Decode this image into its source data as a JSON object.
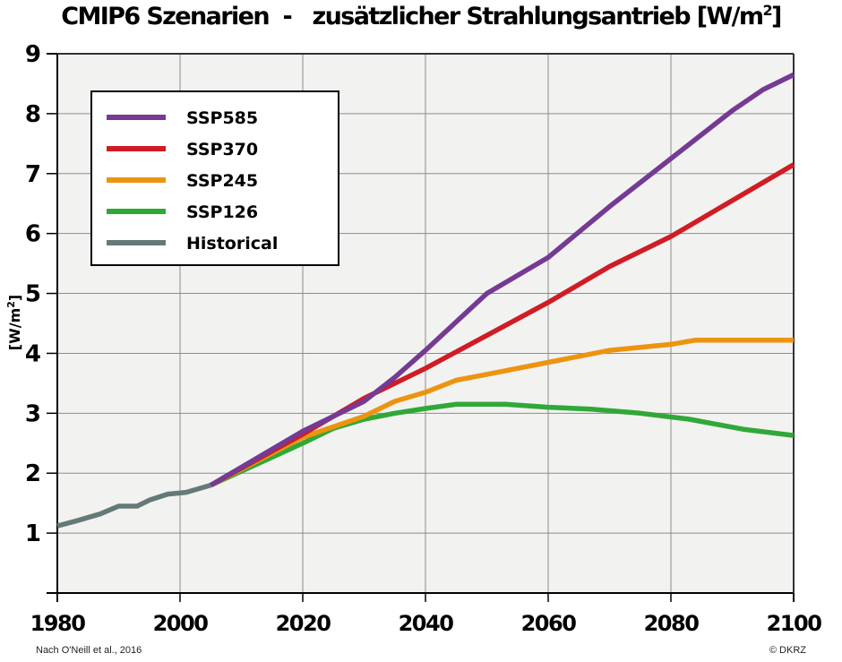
{
  "chart_data": {
    "type": "line",
    "title": "CMIP6 Szenarien  -   zusätzlicher Strahlungsantrieb [W/m",
    "title_sup": "2",
    "title_end": "]",
    "xlabel": "",
    "ylabel": "[W/m",
    "ylabel_sup": "2",
    "ylabel_end": "]",
    "xlim": [
      1980,
      2100
    ],
    "ylim": [
      0,
      9
    ],
    "xticks": [
      1980,
      2000,
      2020,
      2040,
      2060,
      2080,
      2100
    ],
    "xtick_labels": [
      "1980",
      "2000",
      "2020",
      "2040",
      "2060",
      "2080",
      "2100"
    ],
    "yticks": [
      1,
      2,
      3,
      4,
      5,
      6,
      7,
      8,
      9
    ],
    "ytick_labels": [
      "1",
      "2",
      "3",
      "4",
      "5",
      "6",
      "7",
      "8",
      "9"
    ],
    "grid": true,
    "legend_position": "top-left",
    "series": [
      {
        "name": "SSP585",
        "color": "#753a93",
        "x": [
          2005,
          2020,
          2030,
          2035,
          2040,
          2050,
          2060,
          2070,
          2080,
          2090,
          2095,
          2100
        ],
        "y": [
          1.8,
          2.7,
          3.2,
          3.6,
          4.05,
          5.0,
          5.6,
          6.45,
          7.25,
          8.05,
          8.4,
          8.65
        ]
      },
      {
        "name": "SSP370",
        "color": "#d01c24",
        "x": [
          2005,
          2020,
          2030,
          2040,
          2050,
          2060,
          2070,
          2080,
          2090,
          2100
        ],
        "y": [
          1.8,
          2.65,
          3.25,
          3.75,
          4.3,
          4.85,
          5.45,
          5.95,
          6.55,
          7.15
        ]
      },
      {
        "name": "SSP245",
        "color": "#ec9410",
        "x": [
          2005,
          2020,
          2030,
          2035,
          2040,
          2045,
          2050,
          2060,
          2070,
          2080,
          2084,
          2100
        ],
        "y": [
          1.8,
          2.6,
          2.95,
          3.2,
          3.35,
          3.55,
          3.65,
          3.85,
          4.05,
          4.15,
          4.22,
          4.22
        ]
      },
      {
        "name": "SSP126",
        "color": "#30a838",
        "x": [
          2005,
          2020,
          2025,
          2030,
          2035,
          2040,
          2045,
          2053,
          2060,
          2067,
          2075,
          2083,
          2092,
          2100
        ],
        "y": [
          1.8,
          2.5,
          2.75,
          2.9,
          3.0,
          3.08,
          3.15,
          3.15,
          3.1,
          3.07,
          3.0,
          2.9,
          2.73,
          2.63
        ]
      },
      {
        "name": "Historical",
        "color": "#647a78",
        "x": [
          1980,
          1983,
          1987,
          1990,
          1993,
          1995,
          1998,
          2001,
          2005
        ],
        "y": [
          1.12,
          1.2,
          1.32,
          1.45,
          1.45,
          1.55,
          1.65,
          1.68,
          1.8
        ]
      }
    ],
    "legend_order": [
      "SSP585",
      "SSP370",
      "SSP245",
      "SSP126",
      "Historical"
    ]
  },
  "footer": {
    "source": "Nach O'Neill et al., 2016",
    "copyright": "© DKRZ"
  },
  "colors": {
    "plot_background": "#f2f2f1",
    "grid": "#8c8c8c",
    "axis": "#000000"
  }
}
